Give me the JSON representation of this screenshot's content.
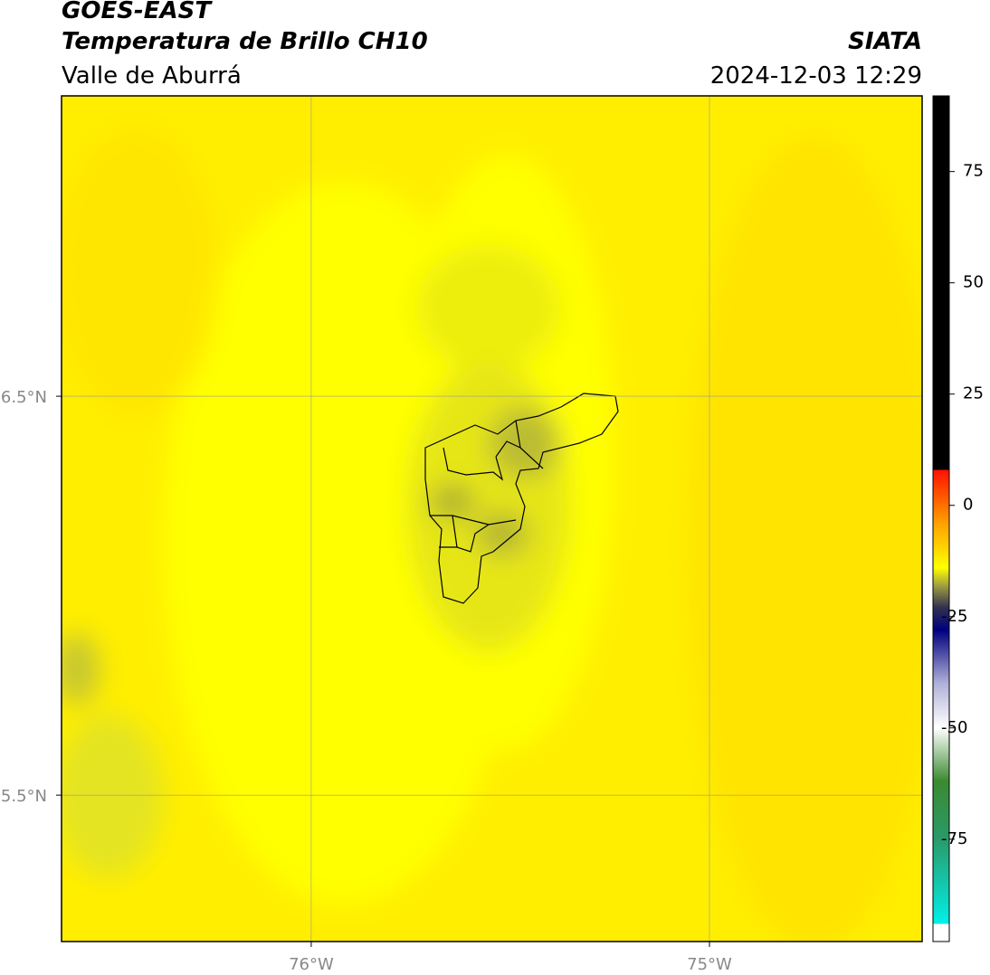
{
  "header": {
    "title": "GOES-EAST",
    "subtitle": "Temperatura de Brillo CH10",
    "region": "Valle de Aburrá",
    "source": "SIATA",
    "datetime": "2024-12-03 12:29"
  },
  "map": {
    "xlim": [
      -76.627,
      -74.466
    ],
    "ylim": [
      5.133,
      7.253
    ],
    "xticks": [
      {
        "value": -76,
        "label": "76°W"
      },
      {
        "value": -75,
        "label": "75°W"
      }
    ],
    "yticks": [
      {
        "value": 6.5,
        "label": "6.5°N"
      },
      {
        "value": 5.5,
        "label": "5.5°N"
      }
    ],
    "grid": true
  },
  "colorbar": {
    "lim": [
      -98,
      92
    ],
    "ticks": [
      75,
      50,
      25,
      0,
      -25,
      -50,
      -75
    ],
    "stops": [
      {
        "value": -98,
        "color": "#ffffff"
      },
      {
        "value": -94,
        "color": "#ffffff"
      },
      {
        "value": -94,
        "color": "#00f0e8"
      },
      {
        "value": -75,
        "color": "#2a9a6a"
      },
      {
        "value": -62,
        "color": "#3a8a30"
      },
      {
        "value": -50,
        "color": "#ffffff"
      },
      {
        "value": -40,
        "color": "#b0b0d8"
      },
      {
        "value": -28,
        "color": "#000080"
      },
      {
        "value": -23,
        "color": "#303050"
      },
      {
        "value": -18,
        "color": "#a0a040"
      },
      {
        "value": -14,
        "color": "#ffff00"
      },
      {
        "value": -4,
        "color": "#ffa000"
      },
      {
        "value": 8,
        "color": "#ff1000"
      },
      {
        "value": 8,
        "color": "#000000"
      },
      {
        "value": 92,
        "color": "#000000"
      }
    ]
  }
}
